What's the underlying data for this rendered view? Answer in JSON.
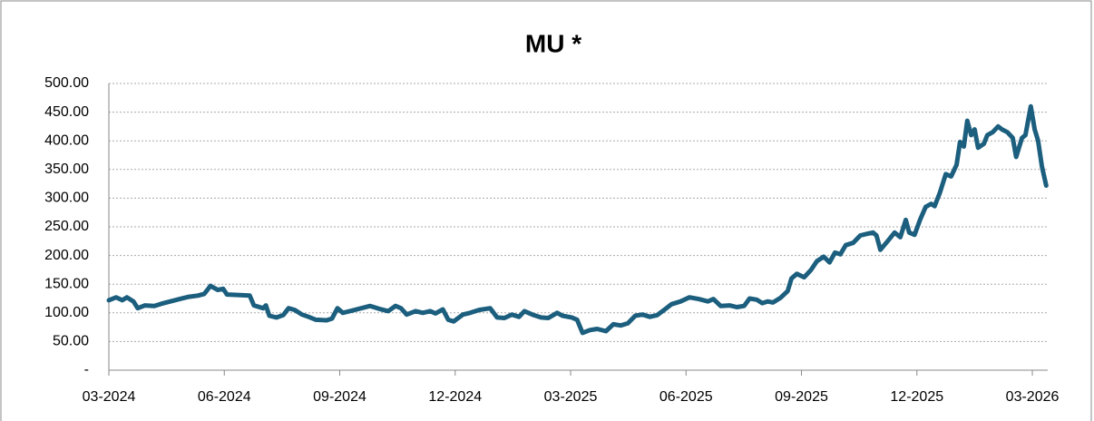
{
  "chart_data": {
    "type": "line",
    "title": "MU *",
    "x": [
      0,
      0.19,
      0.35,
      0.47,
      0.64,
      0.75,
      0.94,
      1.18,
      1.37,
      1.6,
      1.84,
      2.08,
      2.31,
      2.48,
      2.64,
      2.83,
      2.97,
      3.07,
      3.42,
      3.66,
      3.77,
      4.01,
      4.08,
      4.17,
      4.36,
      4.53,
      4.67,
      4.83,
      5.02,
      5.19,
      5.38,
      5.66,
      5.8,
      5.94,
      6.08,
      6.32,
      6.56,
      6.79,
      7.03,
      7.26,
      7.45,
      7.59,
      7.74,
      7.97,
      8.16,
      8.35,
      8.49,
      8.68,
      8.82,
      8.96,
      9.2,
      9.39,
      9.62,
      9.91,
      10.09,
      10.28,
      10.47,
      10.66,
      10.8,
      11.04,
      11.23,
      11.42,
      11.65,
      11.79,
      12.03,
      12.17,
      12.31,
      12.5,
      12.69,
      12.92,
      13.11,
      13.3,
      13.49,
      13.68,
      13.87,
      14.06,
      14.25,
      14.43,
      14.62,
      14.86,
      15.09,
      15.33,
      15.57,
      15.71,
      15.9,
      16.13,
      16.32,
      16.51,
      16.65,
      16.84,
      16.98,
      17.12,
      17.26,
      17.45,
      17.64,
      17.74,
      17.88,
      18.07,
      18.25,
      18.4,
      18.58,
      18.73,
      18.87,
      19.01,
      19.15,
      19.34,
      19.53,
      19.72,
      19.86,
      19.95,
      20.05,
      20.24,
      20.42,
      20.57,
      20.71,
      20.8,
      20.94,
      21.08,
      21.23,
      21.37,
      21.46,
      21.6,
      21.75,
      21.89,
      22.03,
      22.12,
      22.22,
      22.31,
      22.41,
      22.5,
      22.59,
      22.74,
      22.83,
      22.97,
      23.11,
      23.21,
      23.35,
      23.49,
      23.58,
      23.73,
      23.82,
      23.96,
      24.06,
      24.15,
      24.25,
      24.36
    ],
    "series": [
      {
        "name": "MU",
        "color": "#1b5e7e",
        "values": [
          122,
          127,
          122,
          127,
          120,
          108,
          113,
          112,
          116,
          120,
          124,
          128,
          130,
          133,
          147,
          140,
          142,
          132,
          131,
          130,
          113,
          108,
          113,
          95,
          92,
          96,
          108,
          105,
          97,
          93,
          88,
          87,
          90,
          108,
          100,
          104,
          108,
          112,
          107,
          103,
          112,
          108,
          97,
          103,
          100,
          103,
          99,
          106,
          88,
          85,
          97,
          100,
          105,
          108,
          92,
          91,
          97,
          93,
          103,
          96,
          92,
          91,
          100,
          95,
          92,
          88,
          65,
          70,
          72,
          68,
          80,
          78,
          82,
          95,
          97,
          93,
          96,
          105,
          115,
          120,
          127,
          124,
          120,
          124,
          112,
          113,
          110,
          112,
          125,
          123,
          117,
          120,
          118,
          126,
          138,
          160,
          168,
          162,
          175,
          190,
          198,
          188,
          205,
          202,
          218,
          222,
          235,
          238,
          240,
          235,
          210,
          225,
          240,
          232,
          262,
          240,
          236,
          262,
          285,
          290,
          286,
          310,
          342,
          338,
          358,
          398,
          390,
          435,
          410,
          420,
          388,
          395,
          410,
          415,
          425,
          420,
          415,
          405,
          372,
          405,
          410,
          460,
          420,
          400,
          355,
          322
        ]
      }
    ],
    "xlim": [
      0,
      24.4
    ],
    "xticks": [
      {
        "value": 0,
        "label": "03-2024"
      },
      {
        "value": 3,
        "label": "06-2024"
      },
      {
        "value": 6,
        "label": "09-2024"
      },
      {
        "value": 9,
        "label": "12-2024"
      },
      {
        "value": 12,
        "label": "03-2025"
      },
      {
        "value": 15,
        "label": "06-2025"
      },
      {
        "value": 18,
        "label": "09-2025"
      },
      {
        "value": 21,
        "label": "12-2025"
      },
      {
        "value": 24,
        "label": "03-2026"
      }
    ],
    "ylim": [
      0,
      500
    ],
    "yticks": [
      {
        "value": 0,
        "label": "-"
      },
      {
        "value": 50,
        "label": "50.00"
      },
      {
        "value": 100,
        "label": "100.00"
      },
      {
        "value": 150,
        "label": "150.00"
      },
      {
        "value": 200,
        "label": "200.00"
      },
      {
        "value": 250,
        "label": "250.00"
      },
      {
        "value": 300,
        "label": "300.00"
      },
      {
        "value": 350,
        "label": "350.00"
      },
      {
        "value": 400,
        "label": "400.00"
      },
      {
        "value": 450,
        "label": "450.00"
      },
      {
        "value": 500,
        "label": "500.00"
      }
    ],
    "grid": true
  }
}
